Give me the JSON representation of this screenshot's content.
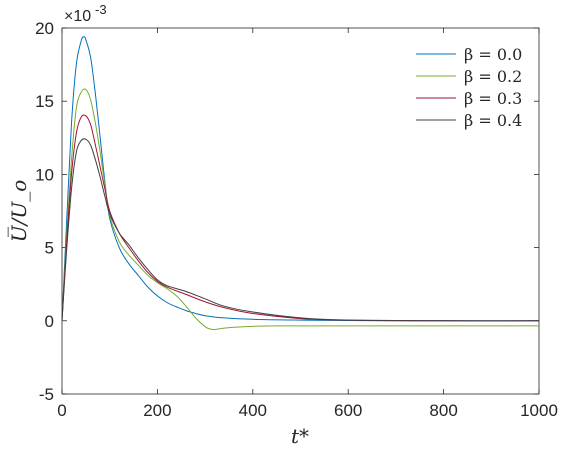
{
  "chart_data": {
    "type": "line",
    "title": "",
    "xlabel": "t*",
    "ylabel": "U̅/U_o",
    "y_multiplier": "×10",
    "y_multiplier_exp": "-3",
    "xlim": [
      0,
      1000
    ],
    "ylim": [
      -5,
      20
    ],
    "xticks": [
      0,
      200,
      400,
      600,
      800,
      1000
    ],
    "yticks": [
      -5,
      0,
      5,
      10,
      15,
      20
    ],
    "grid": false,
    "legend_position": "top-right",
    "series": [
      {
        "name": "β = 0.0",
        "color": "#0072BD",
        "x": [
          0,
          10,
          20,
          30,
          40,
          45,
          50,
          60,
          70,
          80,
          90,
          100,
          120,
          140,
          160,
          180,
          200,
          220,
          240,
          260,
          280,
          300,
          340,
          400,
          500,
          600,
          700,
          800,
          900,
          1000
        ],
        "y": [
          0,
          7,
          13.5,
          17.5,
          19.1,
          19.4,
          19.2,
          18,
          15.5,
          12.5,
          9.5,
          7,
          5,
          3.9,
          3.1,
          2.3,
          1.7,
          1.25,
          0.95,
          0.7,
          0.5,
          0.35,
          0.2,
          0.1,
          0.05,
          0.02,
          0,
          0,
          0,
          0
        ]
      },
      {
        "name": "β = 0.2",
        "color": "#77AC30",
        "x": [
          0,
          10,
          20,
          30,
          40,
          50,
          60,
          70,
          80,
          90,
          100,
          120,
          140,
          160,
          180,
          200,
          220,
          240,
          260,
          280,
          300,
          310,
          320,
          340,
          380,
          450,
          600,
          800,
          1000
        ],
        "y": [
          0,
          6,
          11,
          14.5,
          15.6,
          15.8,
          15.1,
          13.5,
          11.5,
          9.3,
          7.2,
          5.4,
          4.5,
          3.8,
          3.1,
          2.6,
          2.2,
          1.7,
          1.0,
          0.2,
          -0.4,
          -0.55,
          -0.6,
          -0.5,
          -0.4,
          -0.35,
          -0.35,
          -0.35,
          -0.35
        ]
      },
      {
        "name": "β = 0.3",
        "color": "#A2142F",
        "x": [
          0,
          10,
          20,
          30,
          40,
          50,
          60,
          70,
          80,
          90,
          100,
          120,
          140,
          160,
          180,
          200,
          220,
          260,
          300,
          340,
          400,
          500,
          600,
          800,
          1000
        ],
        "y": [
          0,
          5.5,
          10,
          12.8,
          13.9,
          14,
          13.4,
          12,
          10.5,
          9,
          7.5,
          6,
          5,
          4.1,
          3.3,
          2.7,
          2.3,
          1.8,
          1.3,
          0.9,
          0.5,
          0.15,
          0.05,
          0,
          0
        ]
      },
      {
        "name": "β = 0.4",
        "color": "#404040",
        "x": [
          0,
          10,
          20,
          30,
          40,
          50,
          60,
          70,
          80,
          90,
          100,
          120,
          140,
          160,
          180,
          200,
          220,
          260,
          300,
          340,
          400,
          500,
          600,
          800,
          1000
        ],
        "y": [
          0,
          5,
          9,
          11.5,
          12.3,
          12.4,
          12,
          11,
          9.8,
          8.5,
          7.3,
          6,
          5.2,
          4.3,
          3.5,
          2.8,
          2.4,
          2.0,
          1.5,
          1.0,
          0.6,
          0.2,
          0.05,
          0,
          0
        ]
      }
    ]
  }
}
